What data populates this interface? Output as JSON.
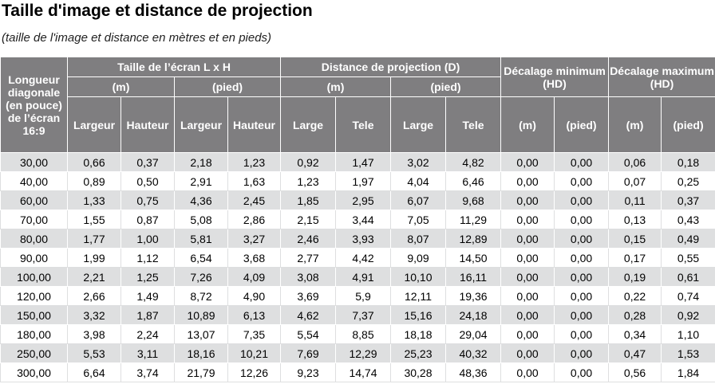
{
  "title": "Taille d'image et distance de projection",
  "subtitle": "(taille de l'image et distance en mètres et en pieds)",
  "header": {
    "diagonal": "Longueur diagonale (en pouce) de l’écran 16:9",
    "screen_size": "Taille de l’écran L x H",
    "projection_distance": "Distance de projection (D)",
    "offset_min": "Décalage minimum (HD)",
    "offset_max": "Décalage maximum (HD)",
    "unit_m": "(m)",
    "unit_ft": "(pied)",
    "width": "Largeur",
    "height": "Hauteur",
    "wide": "Large",
    "tele": "Tele"
  },
  "rows": [
    [
      "30,00",
      "0,66",
      "0,37",
      "2,18",
      "1,23",
      "0,92",
      "1,47",
      "3,02",
      "4,82",
      "0,00",
      "0,00",
      "0,06",
      "0,18"
    ],
    [
      "40,00",
      "0,89",
      "0,50",
      "2,91",
      "1,63",
      "1,23",
      "1,97",
      "4,04",
      "6,46",
      "0,00",
      "0,00",
      "0,07",
      "0,25"
    ],
    [
      "60,00",
      "1,33",
      "0,75",
      "4,36",
      "2,45",
      "1,85",
      "2,95",
      "6,07",
      "9,68",
      "0,00",
      "0,00",
      "0,11",
      "0,37"
    ],
    [
      "70,00",
      "1,55",
      "0,87",
      "5,08",
      "2,86",
      "2,15",
      "3,44",
      "7,05",
      "11,29",
      "0,00",
      "0,00",
      "0,13",
      "0,43"
    ],
    [
      "80,00",
      "1,77",
      "1,00",
      "5,81",
      "3,27",
      "2,46",
      "3,93",
      "8,07",
      "12,89",
      "0,00",
      "0,00",
      "0,15",
      "0,49"
    ],
    [
      "90,00",
      "1,99",
      "1,12",
      "6,54",
      "3,68",
      "2,77",
      "4,42",
      "9,09",
      "14,50",
      "0,00",
      "0,00",
      "0,17",
      "0,55"
    ],
    [
      "100,00",
      "2,21",
      "1,25",
      "7,26",
      "4,09",
      "3,08",
      "4,91",
      "10,10",
      "16,11",
      "0,00",
      "0,00",
      "0,19",
      "0,61"
    ],
    [
      "120,00",
      "2,66",
      "1,49",
      "8,72",
      "4,90",
      "3,69",
      "5,9",
      "12,11",
      "19,36",
      "0,00",
      "0,00",
      "0,22",
      "0,74"
    ],
    [
      "150,00",
      "3,32",
      "1,87",
      "10,89",
      "6,13",
      "4,62",
      "7,37",
      "15,16",
      "24,18",
      "0,00",
      "0,00",
      "0,28",
      "0,92"
    ],
    [
      "180,00",
      "3,98",
      "2,24",
      "13,07",
      "7,35",
      "5,54",
      "8,85",
      "18,18",
      "29,04",
      "0,00",
      "0,00",
      "0,34",
      "1,10"
    ],
    [
      "250,00",
      "5,53",
      "3,11",
      "18,16",
      "10,21",
      "7,69",
      "12,29",
      "25,23",
      "40,32",
      "0,00",
      "0,00",
      "0,47",
      "1,53"
    ],
    [
      "300,00",
      "6,64",
      "3,74",
      "21,79",
      "12,26",
      "9,23",
      "14,74",
      "30,28",
      "48,36",
      "0,00",
      "0,00",
      "0,56",
      "1,84"
    ]
  ]
}
